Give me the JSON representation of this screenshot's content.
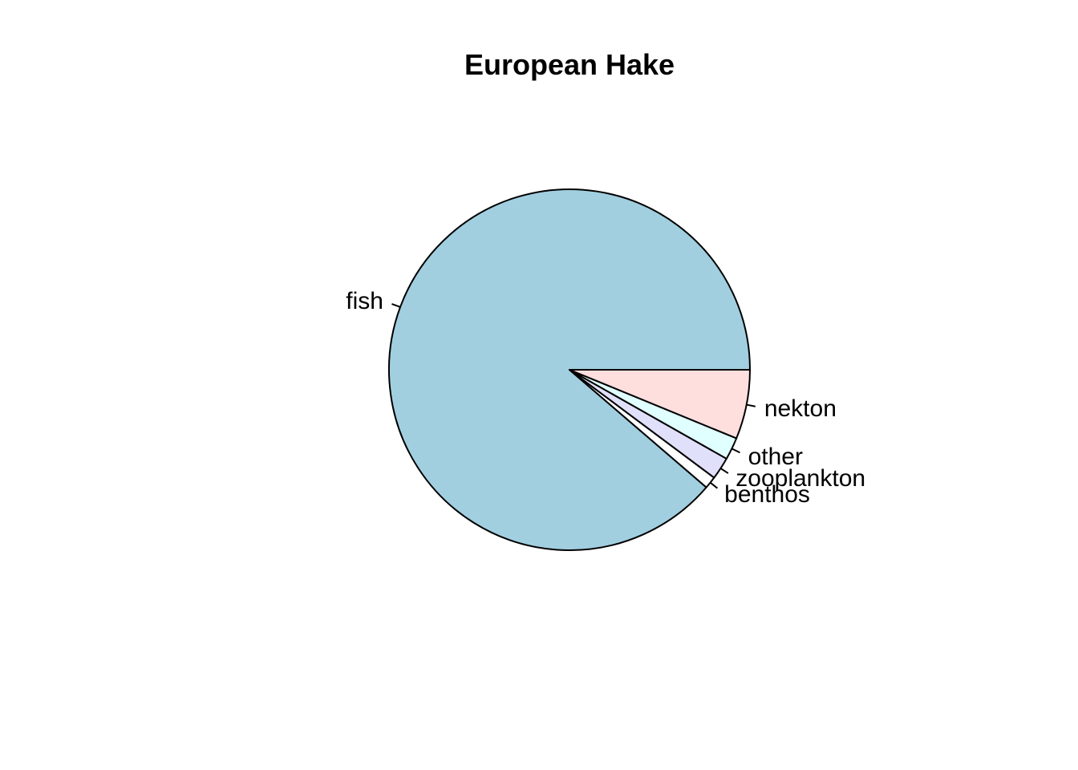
{
  "chart_data": {
    "type": "pie",
    "title": "European Hake",
    "direction": "counterclockwise",
    "start": "3 o'clock",
    "slices": [
      {
        "label": "fish",
        "value": 88.7,
        "color": "#a1cfe0"
      },
      {
        "label": "benthos",
        "value": 1.1,
        "color": "#ffffff"
      },
      {
        "label": "zooplankton",
        "value": 2.0,
        "color": "#e0e0fa"
      },
      {
        "label": "other",
        "value": 2.0,
        "color": "#e0ffff"
      },
      {
        "label": "nekton",
        "value": 6.2,
        "color": "#ffdede"
      }
    ]
  }
}
